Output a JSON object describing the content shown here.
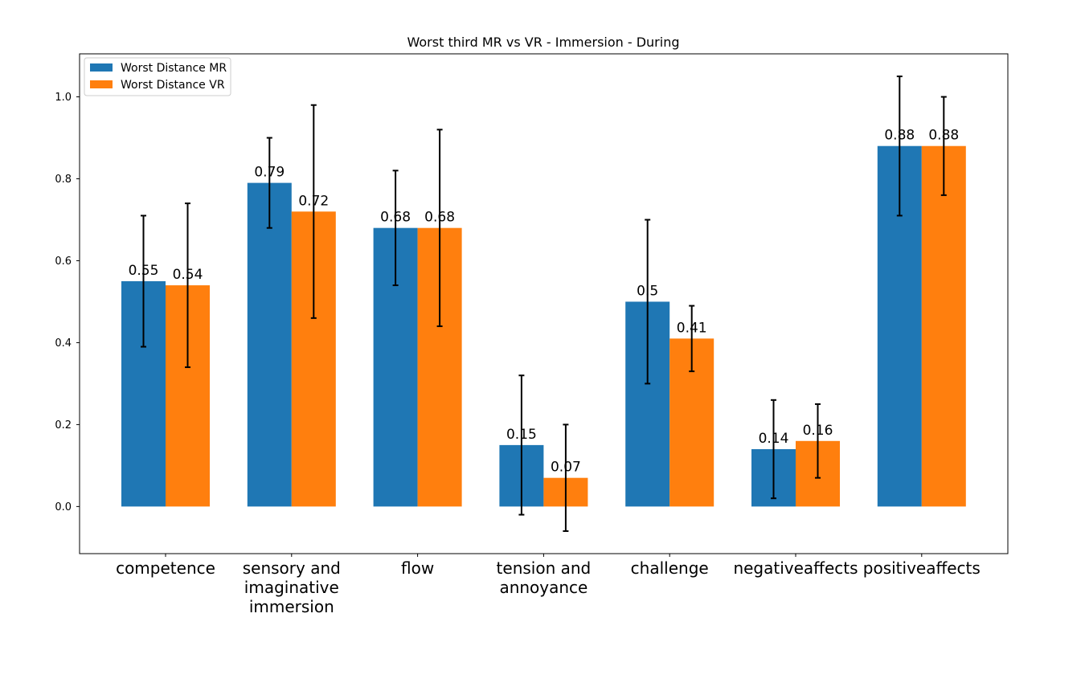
{
  "chart_data": {
    "type": "bar",
    "title": "Worst third MR vs VR - Immersion - During",
    "xlabel": "",
    "ylabel": "",
    "categories": [
      [
        "competence"
      ],
      [
        "sensory and",
        "imaginative",
        "immersion"
      ],
      [
        "flow"
      ],
      [
        "tension and",
        "annoyance"
      ],
      [
        "challenge"
      ],
      [
        "negativeaffects"
      ],
      [
        "positiveaffects"
      ]
    ],
    "series": [
      {
        "name": "Worst Distance MR",
        "color": "#1f77b4",
        "values": [
          0.55,
          0.79,
          0.68,
          0.15,
          0.5,
          0.14,
          0.88
        ],
        "labels": [
          "0.55",
          "0.79",
          "0.68",
          "0.15",
          "0.5",
          "0.14",
          "0.88"
        ],
        "errors": [
          0.16,
          0.11,
          0.14,
          0.17,
          0.2,
          0.12,
          0.17
        ]
      },
      {
        "name": "Worst Distance VR",
        "color": "#ff7f0e",
        "values": [
          0.54,
          0.72,
          0.68,
          0.07,
          0.41,
          0.16,
          0.88
        ],
        "labels": [
          "0.54",
          "0.72",
          "0.68",
          "0.07",
          "0.41",
          "0.16",
          "0.88"
        ],
        "errors": [
          0.2,
          0.26,
          0.24,
          0.13,
          0.08,
          0.09,
          0.12
        ]
      }
    ],
    "ylim": [
      -0.115,
      1.105
    ],
    "yticks": [
      0.0,
      0.2,
      0.4,
      0.6,
      0.8,
      1.0
    ],
    "ytick_labels": [
      "0.0",
      "0.2",
      "0.4",
      "0.6",
      "0.8",
      "1.0"
    ],
    "legend": "top-left",
    "grid": false
  }
}
